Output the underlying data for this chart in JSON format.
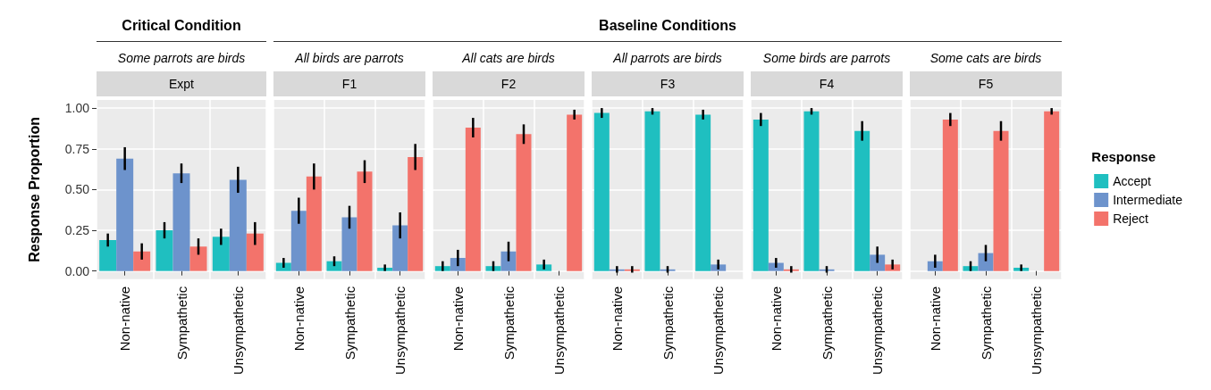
{
  "chart_data": [
    {
      "type": "bar",
      "title": "Expt",
      "subtitle": "Some parrots are birds",
      "annotations": [
        "Critical Condition"
      ],
      "ylabel": "Response Proportion",
      "categories": [
        "Non-native",
        "Sympathetic",
        "Unsympathetic"
      ],
      "ylim": [
        -0.05,
        1.05
      ],
      "yticks": [
        {
          "value": 0,
          "label": "0.00"
        },
        {
          "value": 0.25,
          "label": "0.25"
        },
        {
          "value": 0.5,
          "label": "0.50"
        },
        {
          "value": 0.75,
          "label": "0.75"
        },
        {
          "value": 1,
          "label": "1.00"
        }
      ],
      "grid": true,
      "series": [
        {
          "color": "#1fbfc0",
          "values": [
            0.19,
            0.25,
            0.21
          ],
          "errors": [
            0.04,
            0.05,
            0.05
          ]
        },
        {
          "color": "#6d93cc",
          "values": [
            0.69,
            0.6,
            0.56
          ],
          "errors": [
            0.07,
            0.06,
            0.08
          ]
        },
        {
          "color": "#f3736b",
          "values": [
            0.12,
            0.15,
            0.23
          ],
          "errors": [
            0.05,
            0.05,
            0.07
          ]
        }
      ]
    },
    {
      "type": "bar",
      "title": "F1",
      "subtitle": "All birds are parrots",
      "annotations": [
        "Baseline Conditions"
      ],
      "categories": [
        "Non-native",
        "Sympathetic",
        "Unsympathetic"
      ],
      "ylim": [
        -0.05,
        1.05
      ],
      "yticks": [
        0,
        0.25,
        0.5,
        0.75,
        1
      ],
      "grid": true,
      "tick_labels": "x",
      "series": [
        {
          "color": "#1fbfc0",
          "values": [
            0.05,
            0.06,
            0.02
          ],
          "errors": [
            0.03,
            0.03,
            0.02
          ]
        },
        {
          "color": "#6d93cc",
          "values": [
            0.37,
            0.33,
            0.28
          ],
          "errors": [
            0.08,
            0.07,
            0.08
          ]
        },
        {
          "color": "#f3736b",
          "values": [
            0.58,
            0.61,
            0.7
          ],
          "errors": [
            0.08,
            0.07,
            0.08
          ]
        }
      ]
    },
    {
      "type": "bar",
      "title": "F2",
      "subtitle": "All cats are birds",
      "categories": [
        "Non-native",
        "Sympathetic",
        "Unsympathetic"
      ],
      "ylim": [
        -0.05,
        1.05
      ],
      "yticks": [
        0,
        0.25,
        0.5,
        0.75,
        1
      ],
      "grid": true,
      "tick_labels": "x",
      "series": [
        {
          "color": "#1fbfc0",
          "values": [
            0.03,
            0.03,
            0.04
          ],
          "errors": [
            0.03,
            0.03,
            0.03
          ]
        },
        {
          "color": "#6d93cc",
          "values": [
            0.08,
            0.12,
            0
          ],
          "errors": [
            0.05,
            0.06,
            0
          ]
        },
        {
          "color": "#f3736b",
          "values": [
            0.88,
            0.84,
            0.96
          ],
          "errors": [
            0.06,
            0.06,
            0.03
          ]
        }
      ]
    },
    {
      "type": "bar",
      "title": "F3",
      "subtitle": "All parrots are birds",
      "categories": [
        "Non-native",
        "Sympathetic",
        "Unsympathetic"
      ],
      "ylim": [
        -0.05,
        1.05
      ],
      "yticks": [
        0,
        0.25,
        0.5,
        0.75,
        1
      ],
      "grid": true,
      "tick_labels": "x",
      "series": [
        {
          "color": "#1fbfc0",
          "values": [
            0.97,
            0.98,
            0.96
          ],
          "errors": [
            0.03,
            0.02,
            0.03
          ]
        },
        {
          "color": "#6d93cc",
          "values": [
            0.01,
            0.01,
            0.04
          ],
          "errors": [
            0.02,
            0.02,
            0.03
          ]
        },
        {
          "color": "#f3736b",
          "values": [
            0.01,
            0,
            0
          ],
          "errors": [
            0.02,
            0,
            0
          ]
        }
      ]
    },
    {
      "type": "bar",
      "title": "F4",
      "subtitle": "Some birds are parrots",
      "categories": [
        "Non-native",
        "Sympathetic",
        "Unsympathetic"
      ],
      "ylim": [
        -0.05,
        1.05
      ],
      "yticks": [
        0,
        0.25,
        0.5,
        0.75,
        1
      ],
      "grid": true,
      "tick_labels": "x",
      "series": [
        {
          "color": "#1fbfc0",
          "values": [
            0.93,
            0.98,
            0.86
          ],
          "errors": [
            0.04,
            0.02,
            0.06
          ]
        },
        {
          "color": "#6d93cc",
          "values": [
            0.05,
            0.01,
            0.1
          ],
          "errors": [
            0.03,
            0.02,
            0.05
          ]
        },
        {
          "color": "#f3736b",
          "values": [
            0.01,
            0,
            0.04
          ],
          "errors": [
            0.02,
            0,
            0.03
          ]
        }
      ]
    },
    {
      "type": "bar",
      "title": "F5",
      "subtitle": "Some cats are birds",
      "categories": [
        "Non-native",
        "Sympathetic",
        "Unsympathetic"
      ],
      "ylim": [
        -0.05,
        1.05
      ],
      "yticks": [
        0,
        0.25,
        0.5,
        0.75,
        1
      ],
      "grid": true,
      "tick_labels": "x",
      "legend": "right",
      "legend_title": "Response",
      "series": [
        {
          "name": "Accept",
          "color": "#1fbfc0",
          "values": [
            0,
            0.03,
            0.02
          ],
          "errors": [
            0,
            0.03,
            0.02
          ]
        },
        {
          "name": "Intermediate",
          "color": "#6d93cc",
          "values": [
            0.06,
            0.11,
            0
          ],
          "errors": [
            0.04,
            0.05,
            0
          ]
        },
        {
          "name": "Reject",
          "color": "#f3736b",
          "values": [
            0.93,
            0.86,
            0.98
          ],
          "errors": [
            0.04,
            0.06,
            0.02
          ]
        }
      ]
    }
  ]
}
